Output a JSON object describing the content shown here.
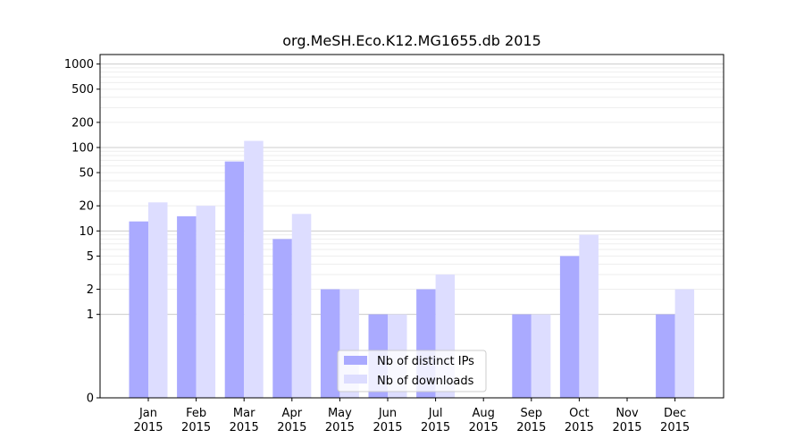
{
  "chart_data": {
    "type": "bar",
    "title": "org.MeSH.Eco.K12.MG1655.db 2015",
    "xlabel": "",
    "ylabel": "",
    "yscale": "symlog",
    "ylim": [
      0,
      1300
    ],
    "yticks": [
      0,
      1,
      2,
      5,
      10,
      20,
      50,
      100,
      200,
      500,
      1000
    ],
    "ytick_labels": [
      "0",
      "1",
      "2",
      "5",
      "10",
      "20",
      "50",
      "100",
      "200",
      "500",
      "1000"
    ],
    "grid": "horizontal",
    "legend_position": "bottom-center",
    "categories": [
      "Jan\n2015",
      "Feb\n2015",
      "Mar\n2015",
      "Apr\n2015",
      "May\n2015",
      "Jun\n2015",
      "Jul\n2015",
      "Aug\n2015",
      "Sep\n2015",
      "Oct\n2015",
      "Nov\n2015",
      "Dec\n2015"
    ],
    "category_lines": [
      [
        "Jan",
        "2015"
      ],
      [
        "Feb",
        "2015"
      ],
      [
        "Mar",
        "2015"
      ],
      [
        "Apr",
        "2015"
      ],
      [
        "May",
        "2015"
      ],
      [
        "Jun",
        "2015"
      ],
      [
        "Jul",
        "2015"
      ],
      [
        "Aug",
        "2015"
      ],
      [
        "Sep",
        "2015"
      ],
      [
        "Oct",
        "2015"
      ],
      [
        "Nov",
        "2015"
      ],
      [
        "Dec",
        "2015"
      ]
    ],
    "series": [
      {
        "name": "Nb of distinct IPs",
        "color": "#aaaaff",
        "values": [
          13,
          15,
          68,
          8,
          2,
          1,
          2,
          0,
          1,
          5,
          0,
          1
        ]
      },
      {
        "name": "Nb of downloads",
        "color": "#ddddff",
        "values": [
          22,
          20,
          120,
          16,
          2,
          1,
          3,
          0,
          1,
          9,
          0,
          2
        ]
      }
    ]
  }
}
